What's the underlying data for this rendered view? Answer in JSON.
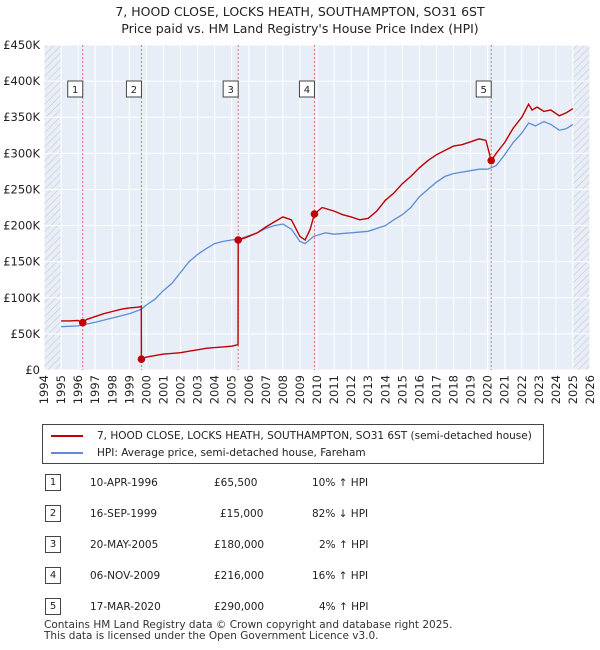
{
  "header": {
    "title": "7, HOOD CLOSE, LOCKS HEATH, SOUTHAMPTON, SO31 6ST",
    "subtitle": "Price paid vs. HM Land Registry's House Price Index (HPI)"
  },
  "legend": {
    "items": [
      {
        "label": "7, HOOD CLOSE, LOCKS HEATH, SOUTHAMPTON, SO31 6ST (semi-detached house)",
        "color": "#c00000"
      },
      {
        "label": "HPI: Average price, semi-detached house, Fareham",
        "color": "#5b8ed6"
      }
    ]
  },
  "transactions": [
    {
      "num": "1",
      "date": "10-APR-1996",
      "price": "£65,500",
      "hpi": "10% ↑ HPI"
    },
    {
      "num": "2",
      "date": "16-SEP-1999",
      "price": "£15,000",
      "hpi": "82% ↓ HPI"
    },
    {
      "num": "3",
      "date": "20-MAY-2005",
      "price": "£180,000",
      "hpi": "2% ↑ HPI"
    },
    {
      "num": "4",
      "date": "06-NOV-2009",
      "price": "£216,000",
      "hpi": "16% ↑ HPI"
    },
    {
      "num": "5",
      "date": "17-MAR-2020",
      "price": "£290,000",
      "hpi": "4% ↑ HPI"
    }
  ],
  "footer": {
    "line1": "Contains HM Land Registry data © Crown copyright and database right 2025.",
    "line2": "This data is licensed under the Open Government Licence v3.0."
  },
  "colors": {
    "property": "#c00000",
    "hpi": "#5b8ed6",
    "plot_bg": "#e8eef8",
    "hatch": "#c8c8c8",
    "marker_line": "#e07070"
  },
  "chart_data": {
    "type": "line",
    "xlim": [
      1994,
      2026
    ],
    "ylim": [
      0,
      450000
    ],
    "x_ticks": [
      "1994",
      "1995",
      "1996",
      "1997",
      "1998",
      "1999",
      "2000",
      "2001",
      "2002",
      "2003",
      "2004",
      "2005",
      "2006",
      "2007",
      "2008",
      "2009",
      "2010",
      "2011",
      "2012",
      "2013",
      "2014",
      "2015",
      "2016",
      "2017",
      "2018",
      "2019",
      "2020",
      "2021",
      "2022",
      "2023",
      "2024",
      "2025",
      "2026"
    ],
    "y_ticks": [
      {
        "value": 0,
        "label": "£0"
      },
      {
        "value": 50000,
        "label": "£50K"
      },
      {
        "value": 100000,
        "label": "£100K"
      },
      {
        "value": 150000,
        "label": "£150K"
      },
      {
        "value": 200000,
        "label": "£200K"
      },
      {
        "value": 250000,
        "label": "£250K"
      },
      {
        "value": 300000,
        "label": "£300K"
      },
      {
        "value": 350000,
        "label": "£350K"
      },
      {
        "value": 400000,
        "label": "£400K"
      },
      {
        "value": 450000,
        "label": "£450K"
      }
    ],
    "grid": true,
    "hatched_ranges": [
      [
        1994,
        1995
      ],
      [
        2025.0,
        2026
      ]
    ],
    "series": [
      {
        "name": "7, HOOD CLOSE, LOCKS HEATH, SOUTHAMPTON, SO31 6ST (semi-detached house)",
        "x": [
          1995.0,
          1995.5,
          1996.0,
          1996.27,
          1996.5,
          1997.0,
          1997.5,
          1998.0,
          1998.5,
          1999.0,
          1999.5,
          1999.7,
          1999.71,
          2000.0,
          2000.5,
          2001.0,
          2001.5,
          2002.0,
          2002.5,
          2003.0,
          2003.5,
          2004.0,
          2004.5,
          2005.0,
          2005.37,
          2005.38,
          2005.8,
          2006.5,
          2007.0,
          2007.5,
          2008.0,
          2008.5,
          2009.0,
          2009.3,
          2009.6,
          2009.85,
          2010.3,
          2011.0,
          2011.5,
          2012.0,
          2012.5,
          2013.0,
          2013.5,
          2014.0,
          2014.5,
          2015.0,
          2015.5,
          2016.0,
          2016.5,
          2017.0,
          2017.5,
          2018.0,
          2018.5,
          2019.0,
          2019.5,
          2019.9,
          2020.21,
          2020.5,
          2021.0,
          2021.5,
          2022.0,
          2022.4,
          2022.6,
          2022.9,
          2023.3,
          2023.7,
          2024.2,
          2024.6,
          2025.0
        ],
        "y": [
          68000,
          68000,
          68500,
          65500,
          70000,
          74000,
          78000,
          81000,
          84000,
          86000,
          87000,
          88000,
          15000,
          18000,
          20000,
          22000,
          23000,
          24000,
          26000,
          28000,
          30000,
          31000,
          32000,
          33000,
          35000,
          180000,
          183000,
          190000,
          198000,
          205000,
          212000,
          208000,
          185000,
          180000,
          195000,
          216000,
          225000,
          220000,
          215000,
          212000,
          208000,
          210000,
          220000,
          235000,
          245000,
          258000,
          268000,
          280000,
          290000,
          298000,
          304000,
          310000,
          312000,
          316000,
          320000,
          318000,
          290000,
          300000,
          315000,
          335000,
          350000,
          368000,
          360000,
          364000,
          358000,
          360000,
          352000,
          356000,
          362000
        ]
      },
      {
        "name": "HPI: Average price, semi-detached house, Fareham",
        "x": [
          1995.0,
          1996.0,
          1997.0,
          1998.0,
          1999.0,
          1999.7,
          2000.0,
          2000.5,
          2001.0,
          2001.5,
          2002.0,
          2002.5,
          2003.0,
          2003.5,
          2004.0,
          2004.5,
          2005.0,
          2005.5,
          2006.0,
          2006.5,
          2007.0,
          2007.5,
          2008.0,
          2008.5,
          2009.0,
          2009.3,
          2009.8,
          2010.5,
          2011.0,
          2012.0,
          2013.0,
          2014.0,
          2014.5,
          2015.0,
          2015.5,
          2016.0,
          2016.5,
          2017.0,
          2017.5,
          2018.0,
          2018.5,
          2019.0,
          2019.5,
          2020.0,
          2020.5,
          2021.0,
          2021.5,
          2022.0,
          2022.4,
          2022.8,
          2023.3,
          2023.7,
          2024.2,
          2024.6,
          2025.0
        ],
        "y": [
          60000,
          61000,
          66000,
          72000,
          78000,
          84000,
          90000,
          98000,
          110000,
          120000,
          135000,
          150000,
          160000,
          168000,
          175000,
          178000,
          180000,
          182000,
          186000,
          190000,
          196000,
          200000,
          202000,
          195000,
          178000,
          175000,
          185000,
          190000,
          188000,
          190000,
          192000,
          200000,
          208000,
          215000,
          225000,
          240000,
          250000,
          260000,
          268000,
          272000,
          274000,
          276000,
          278000,
          278000,
          283000,
          298000,
          315000,
          328000,
          342000,
          338000,
          344000,
          340000,
          332000,
          334000,
          340000
        ]
      }
    ],
    "markers": [
      {
        "label": "1",
        "x": 1996.27,
        "y": 65500
      },
      {
        "label": "2",
        "x": 1999.71,
        "y": 15000
      },
      {
        "label": "3",
        "x": 2005.38,
        "y": 180000
      },
      {
        "label": "4",
        "x": 2009.85,
        "y": 216000
      },
      {
        "label": "5",
        "x": 2020.21,
        "y": 290000
      }
    ]
  }
}
